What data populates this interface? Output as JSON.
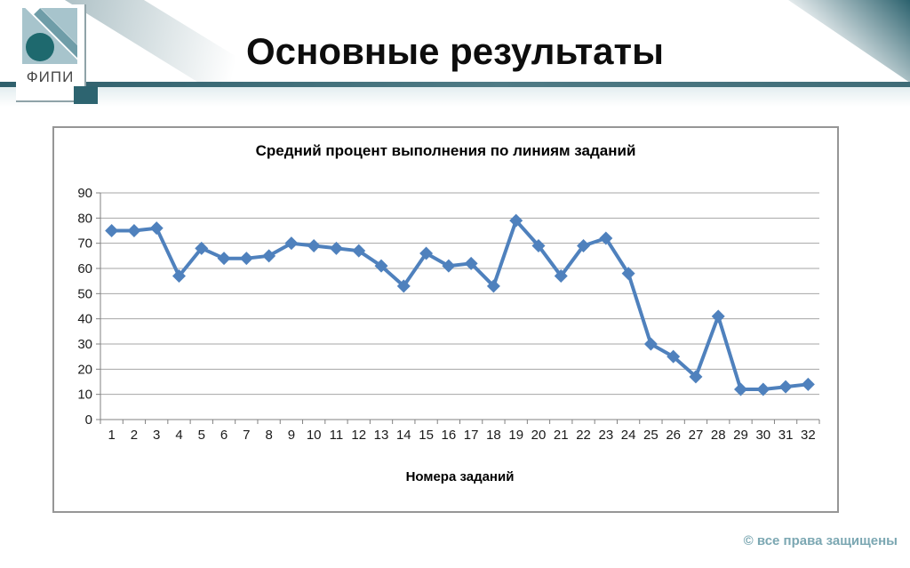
{
  "slide": {
    "title": "Основные результаты",
    "footer": "© все права защищены"
  },
  "logo": {
    "text": "ФИПИ"
  },
  "theme": {
    "header_bar_color": "#3e6b76",
    "accent_dark_teal": "#2d6470",
    "logo_light_blue": "#a7c4cc",
    "series_color": "#4F81BD",
    "gridline_color": "#a6a6a6",
    "axis_color": "#808080",
    "footer_text_color": "#7ba7b2"
  },
  "chart_data": {
    "type": "line",
    "title": "Средний процент выполнения по линиям заданий",
    "xlabel": "Номера заданий",
    "ylabel": "",
    "x": [
      1,
      2,
      3,
      4,
      5,
      6,
      7,
      8,
      9,
      10,
      11,
      12,
      13,
      14,
      15,
      16,
      17,
      18,
      19,
      20,
      21,
      22,
      23,
      24,
      25,
      26,
      27,
      28,
      29,
      30,
      31,
      32
    ],
    "values": [
      75,
      75,
      76,
      57,
      68,
      64,
      64,
      65,
      70,
      69,
      68,
      67,
      61,
      53,
      66,
      61,
      62,
      53,
      79,
      69,
      57,
      69,
      72,
      58,
      30,
      25,
      17,
      41,
      12,
      12,
      13,
      14
    ],
    "ylim": [
      0,
      90
    ],
    "yticks": [
      0,
      10,
      20,
      30,
      40,
      50,
      60,
      70,
      80,
      90
    ],
    "grid": true,
    "legend": "none",
    "marker": "diamond"
  }
}
